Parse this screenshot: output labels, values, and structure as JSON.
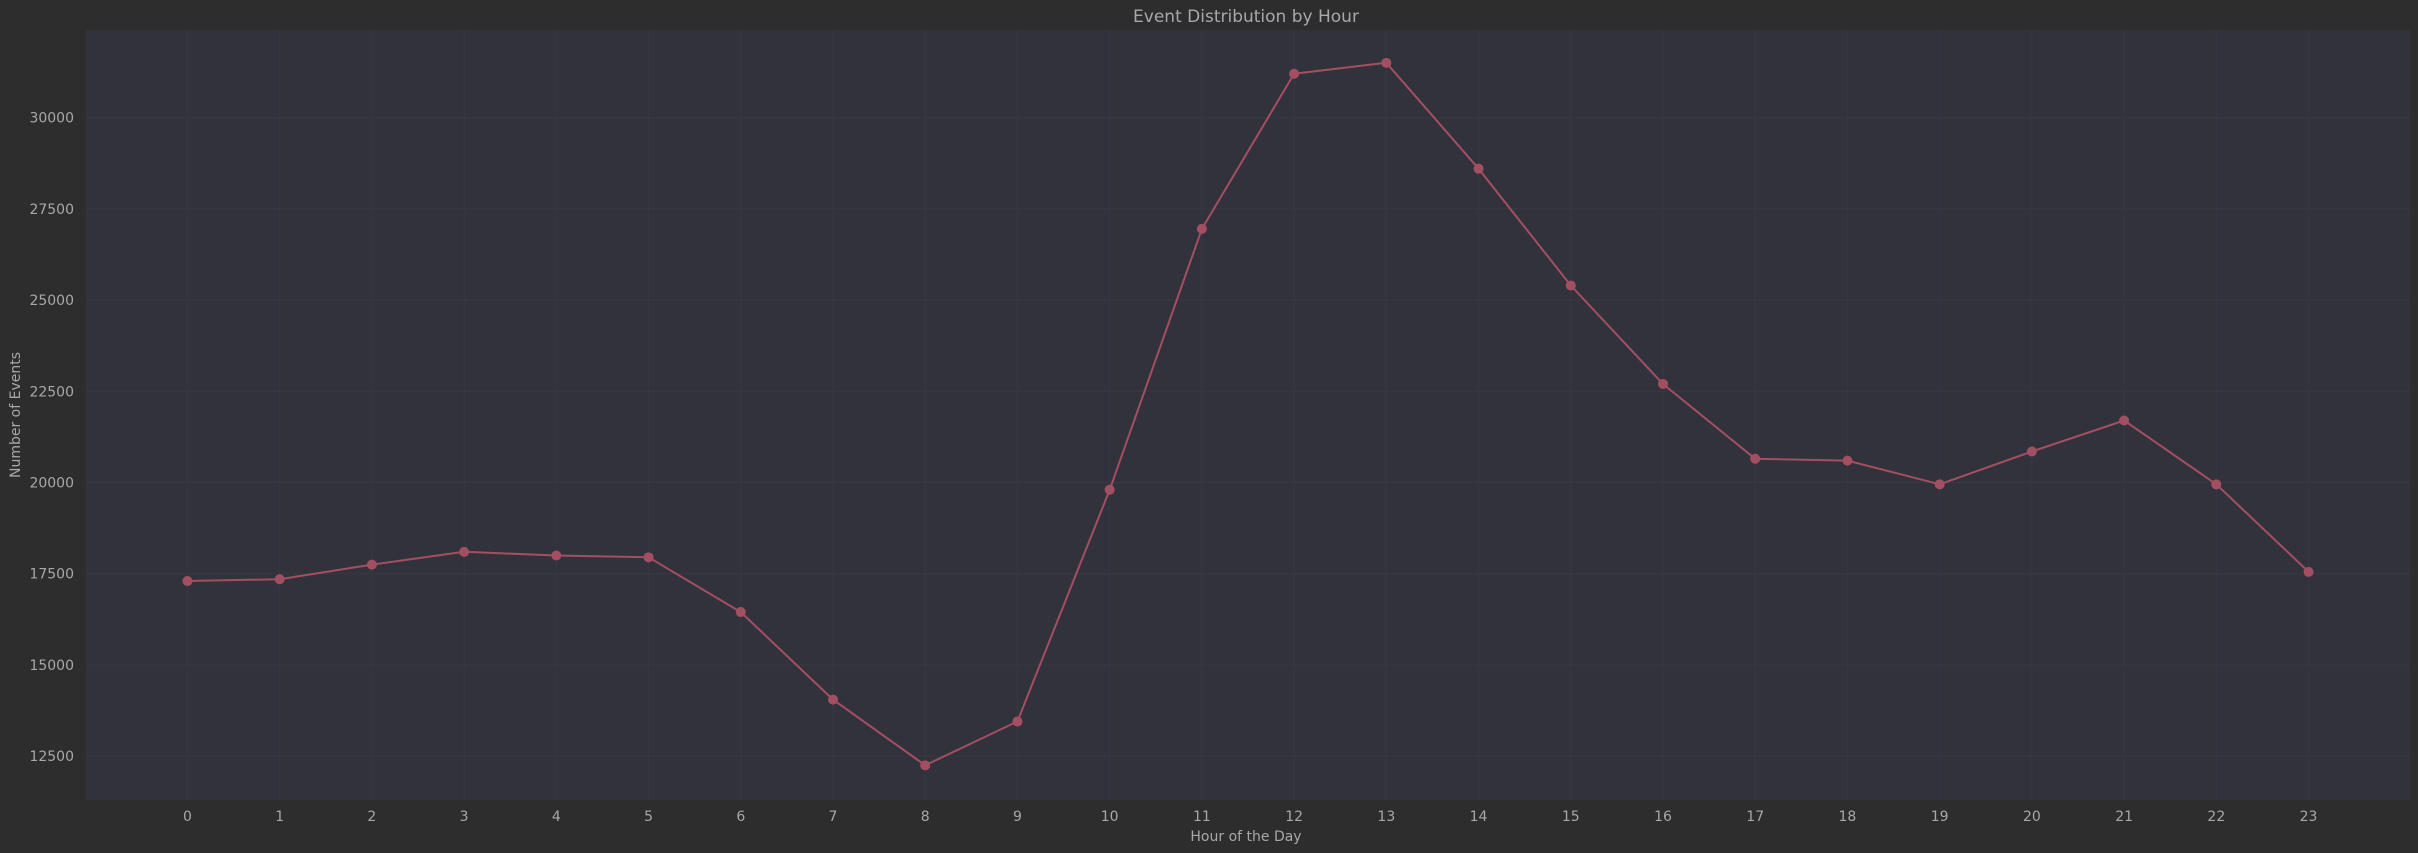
{
  "chart_data": {
    "type": "line",
    "title": "Event Distribution by Hour",
    "xlabel": "Hour of the Day",
    "ylabel": "Number of Events",
    "x": [
      0,
      1,
      2,
      3,
      4,
      5,
      6,
      7,
      8,
      9,
      10,
      11,
      12,
      13,
      14,
      15,
      16,
      17,
      18,
      19,
      20,
      21,
      22,
      23
    ],
    "series": [
      {
        "name": "Events",
        "values": [
          17300,
          17350,
          17750,
          18100,
          18000,
          17950,
          16450,
          14050,
          12250,
          13450,
          19800,
          26950,
          31200,
          31500,
          28600,
          25400,
          22700,
          20650,
          20600,
          19950,
          20850,
          21700,
          19950,
          17550
        ]
      }
    ],
    "yticks": [
      12500,
      15000,
      17500,
      20000,
      22500,
      25000,
      27500,
      30000
    ],
    "ylim": [
      11300,
      32400
    ],
    "xlim": [
      -1.1,
      24.1
    ],
    "grid": true,
    "colors": {
      "background": "#2d2d2d",
      "plot_background": "#32323c",
      "grid": "#383843",
      "line": "#a34f62",
      "marker": "#a34f62",
      "text": "#a8a8a8"
    }
  }
}
